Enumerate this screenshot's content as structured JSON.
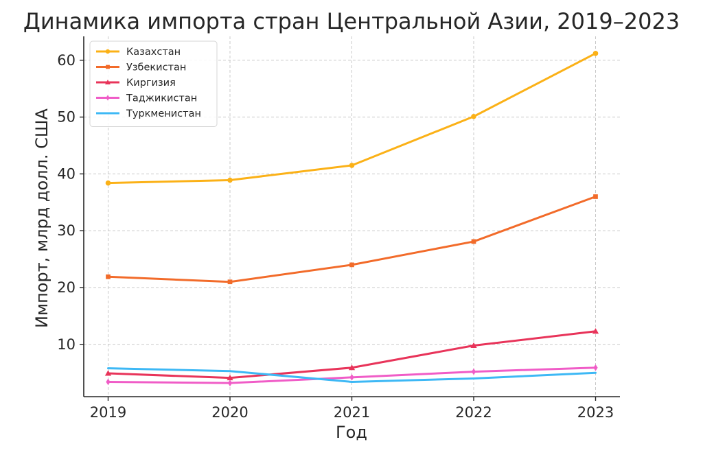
{
  "chart_data": {
    "type": "line",
    "title": "Динамика импорта стран Центральной Азии, 2019–2023",
    "xlabel": "Год",
    "ylabel": "Импорт, млрд долл. США",
    "x": [
      2019,
      2020,
      2021,
      2022,
      2023
    ],
    "x_tick_labels": [
      "2019",
      "2020",
      "2021",
      "2022",
      "2023"
    ],
    "y_ticks": [
      10,
      20,
      30,
      40,
      50,
      60
    ],
    "y_tick_labels": [
      "10",
      "20",
      "30",
      "40",
      "50",
      "60"
    ],
    "xlim": [
      2018.8,
      2023.2
    ],
    "ylim": [
      0.8,
      64.2
    ],
    "grid": true,
    "grid_style": "dashed",
    "legend_position": "top-left",
    "series": [
      {
        "name": "Казахстан",
        "color": "#FBB117",
        "marker": "circle",
        "values": [
          38.4,
          38.9,
          41.5,
          50.1,
          61.2
        ]
      },
      {
        "name": "Узбекистан",
        "color": "#F26B2A",
        "marker": "square",
        "values": [
          21.9,
          21.0,
          24.0,
          28.1,
          36.0
        ]
      },
      {
        "name": "Киргизия",
        "color": "#E8345A",
        "marker": "triangle",
        "values": [
          4.9,
          4.1,
          5.9,
          9.8,
          12.3
        ]
      },
      {
        "name": "Таджикистан",
        "color": "#F05CC7",
        "marker": "diamond",
        "values": [
          3.4,
          3.2,
          4.2,
          5.2,
          5.9
        ]
      },
      {
        "name": "Туркменистан",
        "color": "#3DB8F5",
        "marker": "none",
        "values": [
          5.8,
          5.3,
          3.4,
          4.0,
          5.0
        ]
      }
    ]
  }
}
